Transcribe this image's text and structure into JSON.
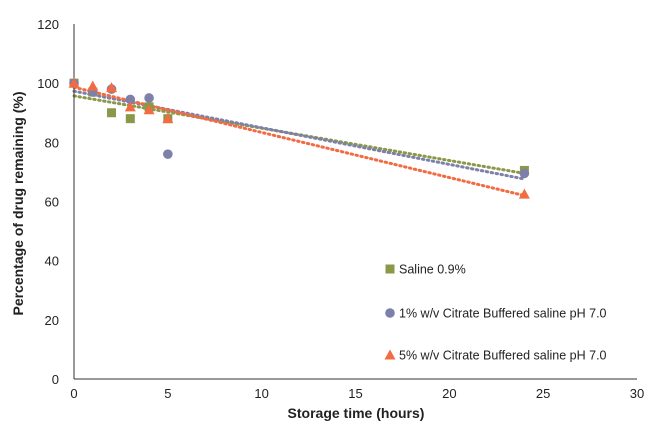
{
  "chart_data": {
    "type": "scatter",
    "xlabel": "Storage time (hours)",
    "ylabel": "Percentage of drug remaining  (%)",
    "xlim": [
      0,
      30
    ],
    "ylim": [
      0,
      120
    ],
    "x_ticks": [
      "0",
      "5",
      "10",
      "15",
      "20",
      "25",
      "30"
    ],
    "y_ticks": [
      "0",
      "20",
      "40",
      "60",
      "80",
      "100",
      "120"
    ],
    "grid": false,
    "legend_position": "bottom-right",
    "trendlines": "linear, dotted",
    "series": [
      {
        "name": "Saline 0.9%",
        "marker": "square",
        "color": "#8b9848",
        "x": [
          0,
          1,
          2,
          3,
          4,
          5,
          24
        ],
        "y": [
          100,
          97,
          90,
          88,
          92,
          88,
          70.5
        ],
        "trend": [
          95.7,
          69.5
        ]
      },
      {
        "name": "1% w/v Citrate Buffered saline pH 7.0",
        "marker": "circle",
        "color": "#7d80a8",
        "x": [
          0,
          1,
          2,
          3,
          4,
          5,
          24
        ],
        "y": [
          100,
          97,
          98,
          94.5,
          95,
          76,
          69.5
        ],
        "trend": [
          97.3,
          67.6
        ]
      },
      {
        "name": "5% w/v Citrate Buffered saline pH 7.0",
        "marker": "triangle",
        "color": "#f26b43",
        "x": [
          0,
          1,
          2,
          3,
          4,
          5,
          24
        ],
        "y": [
          100,
          99,
          98.5,
          92,
          91,
          88,
          62.5
        ],
        "trend": [
          98.6,
          62
        ]
      }
    ]
  }
}
